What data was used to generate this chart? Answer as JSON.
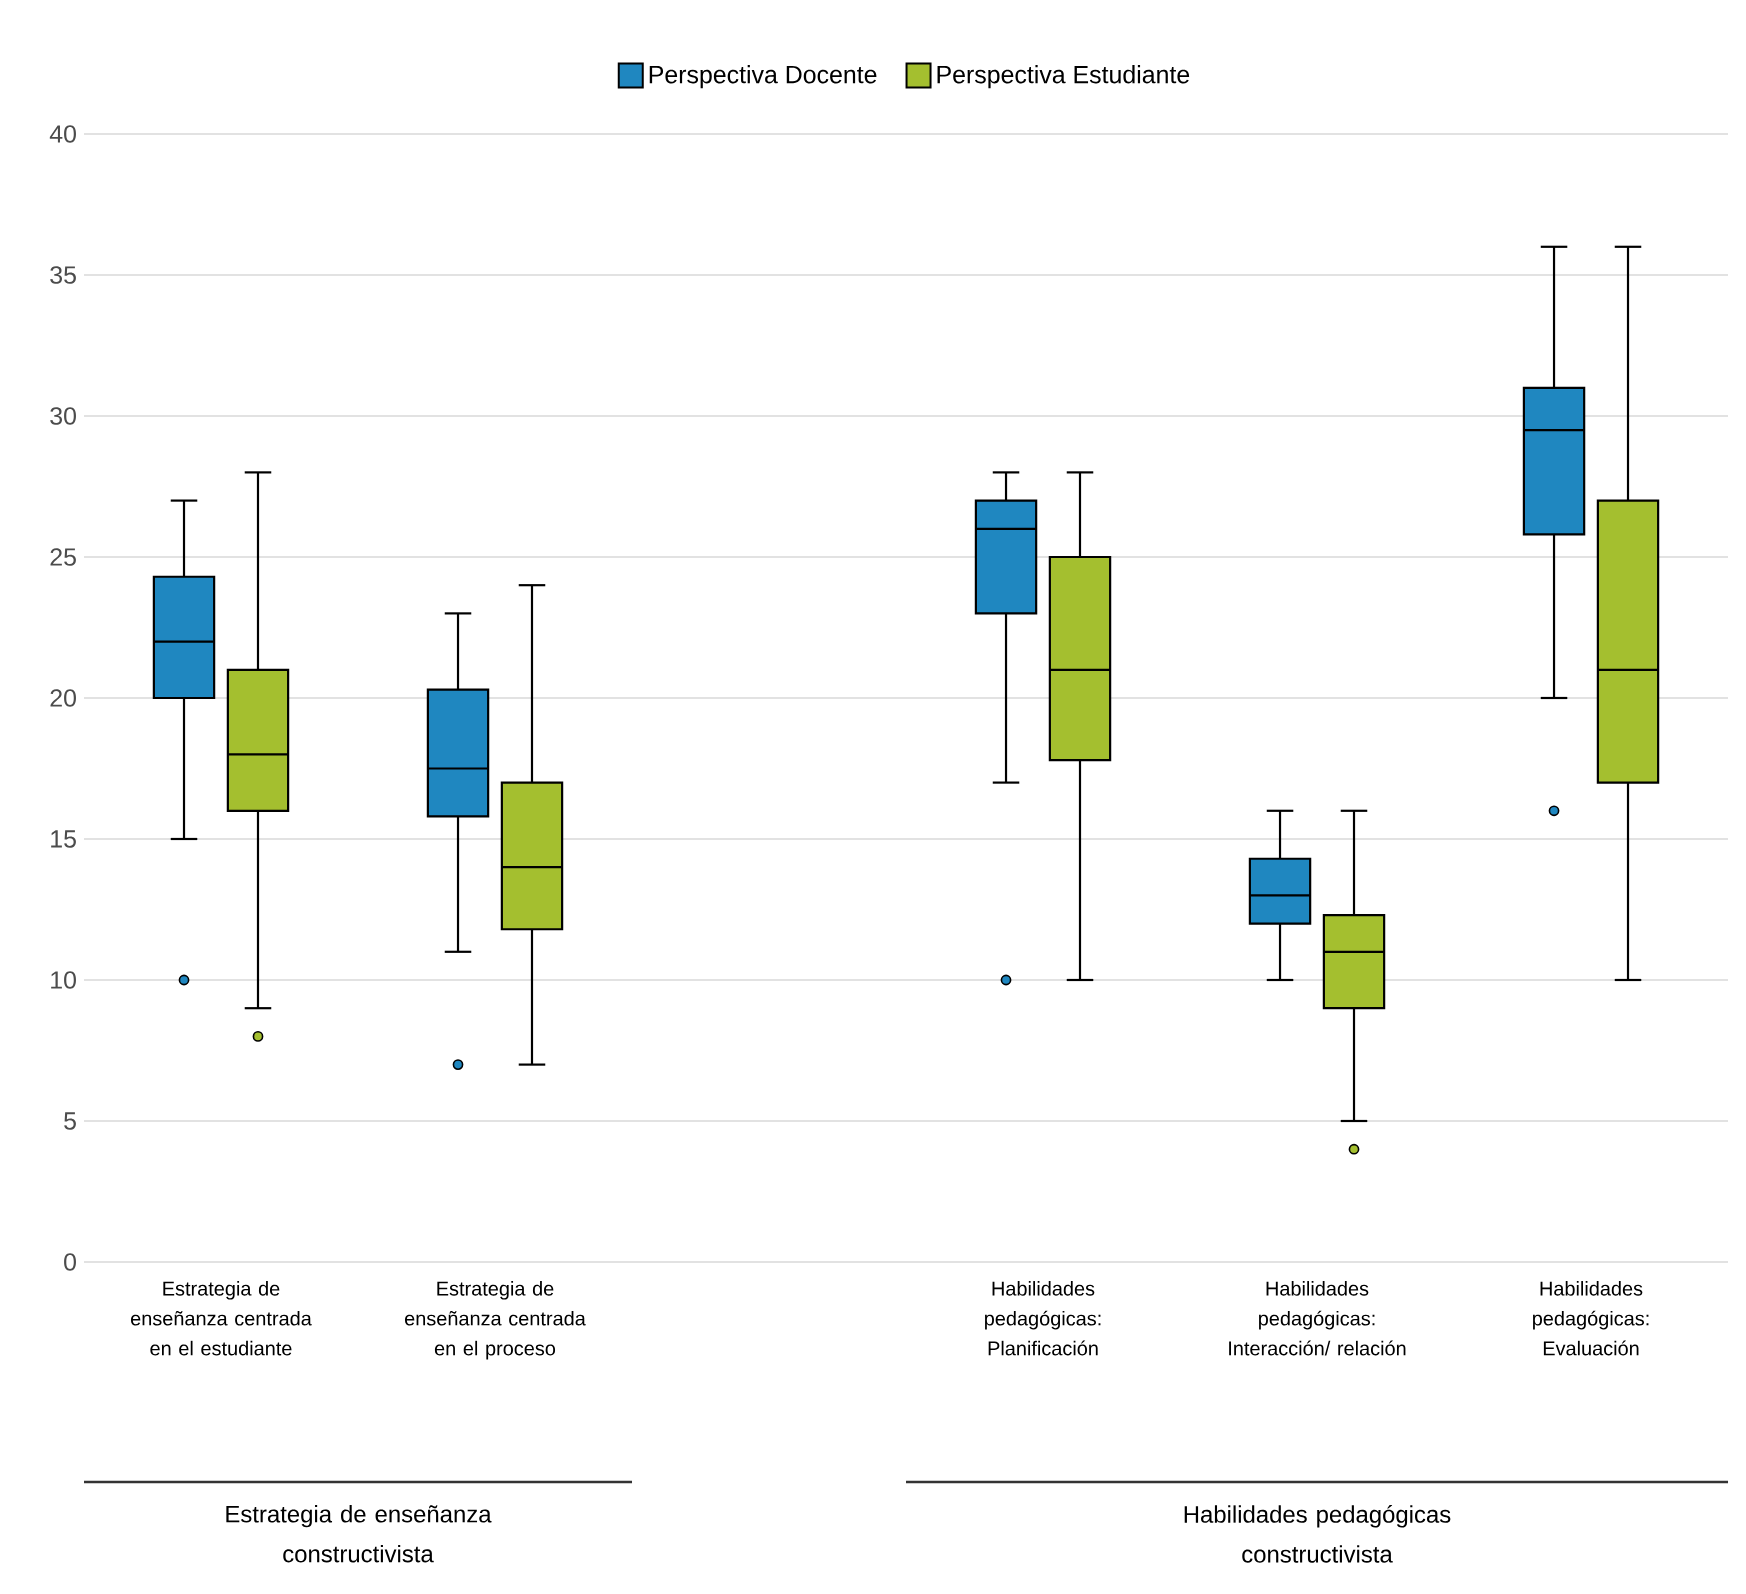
{
  "chart_data": {
    "type": "box",
    "categories": [
      "Estrategia de enseñanza centrada en el estudiante",
      "Estrategia de enseñanza centrada en el proceso",
      null,
      "Habilidades pedagógicas: Planificación",
      "Habilidades pedagógicas: Interacción/ relación",
      "Habilidades pedagógicas: Evaluación"
    ],
    "series": [
      {
        "name": "Perspectiva Docente",
        "color": "#1f87c0",
        "boxes": [
          {
            "low": 15,
            "q1": 20,
            "median": 22,
            "q3": 24.3,
            "high": 27,
            "outliers": [
              10
            ]
          },
          {
            "low": 11,
            "q1": 15.8,
            "median": 17.5,
            "q3": 20.3,
            "high": 23,
            "outliers": [
              7
            ]
          },
          null,
          {
            "low": 17,
            "q1": 23,
            "median": 26,
            "q3": 27,
            "high": 28,
            "outliers": [
              10
            ]
          },
          {
            "low": 10,
            "q1": 12,
            "median": 13,
            "q3": 14.3,
            "high": 16
          },
          {
            "low": 20,
            "q1": 25.8,
            "median": 29.5,
            "q3": 31,
            "high": 36,
            "outliers": [
              16
            ]
          }
        ]
      },
      {
        "name": "Perspectiva Estudiante",
        "color": "#a4bf2f",
        "boxes": [
          {
            "low": 9,
            "q1": 16,
            "median": 18,
            "q3": 21,
            "high": 28,
            "outliers": [
              8
            ]
          },
          {
            "low": 7,
            "q1": 11.8,
            "median": 14,
            "q3": 17,
            "high": 24
          },
          null,
          {
            "low": 10,
            "q1": 17.8,
            "median": 21,
            "q3": 25,
            "high": 28
          },
          {
            "low": 5,
            "q1": 9,
            "median": 11,
            "q3": 12.3,
            "high": 16,
            "outliers": [
              4
            ]
          },
          {
            "low": 10,
            "q1": 17,
            "median": 21,
            "q3": 27,
            "high": 36
          }
        ]
      }
    ],
    "ylim": [
      0,
      40
    ],
    "yticks": [
      0,
      5,
      10,
      15,
      20,
      25,
      30,
      35,
      40
    ],
    "grid": "y",
    "legend": "top",
    "annotations": [
      "Estrategia de enseñanza constructivista",
      "Habilidades pedagógicas constructivista"
    ]
  }
}
